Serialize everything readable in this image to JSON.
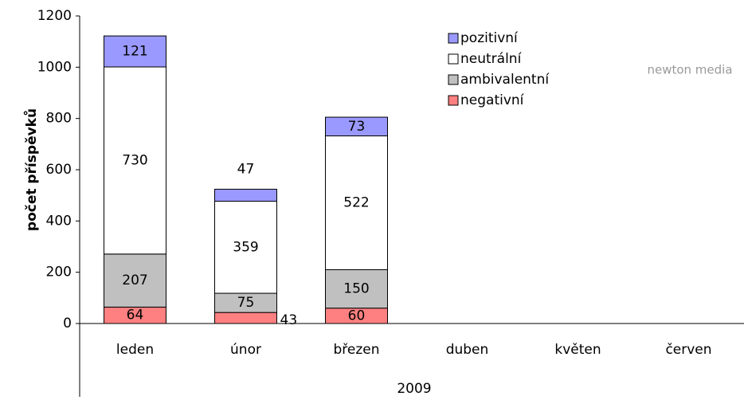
{
  "chart_data": {
    "type": "stacked_bar",
    "y_label": "počet příspěvků",
    "x_label": "2009",
    "logo_text": "newton media",
    "categories": [
      "leden",
      "únor",
      "březen",
      "duben",
      "květen",
      "červen"
    ],
    "series": [
      {
        "name": "negativní",
        "color": "#ff8080",
        "values": [
          64,
          43,
          60,
          null,
          null,
          null
        ]
      },
      {
        "name": "ambivalentní",
        "color": "#c0c0c0",
        "values": [
          207,
          75,
          150,
          null,
          null,
          null
        ]
      },
      {
        "name": "neutrální",
        "color": "#ffffff",
        "values": [
          730,
          359,
          522,
          null,
          null,
          null
        ]
      },
      {
        "name": "pozitivní",
        "color": "#9999ff",
        "values": [
          121,
          47,
          73,
          null,
          null,
          null
        ]
      }
    ],
    "ylim": [
      0,
      1200
    ],
    "yticks": [
      0,
      200,
      400,
      600,
      800,
      1000,
      1200
    ]
  }
}
